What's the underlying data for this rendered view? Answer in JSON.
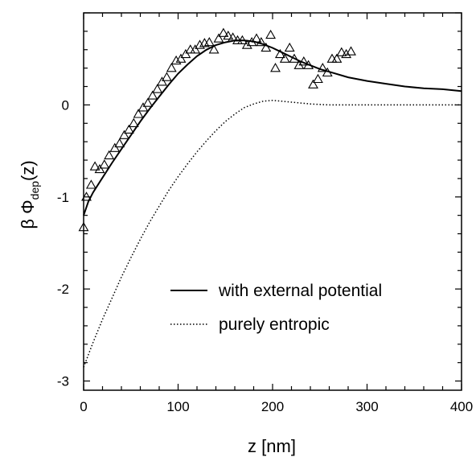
{
  "chart_data": {
    "type": "scatter",
    "xlabel": "z [nm]",
    "ylabel": {
      "prefix": "β Φ",
      "subscript": "dep",
      "suffix": "(z)"
    },
    "xlim": [
      0,
      400
    ],
    "ylim": [
      -3.1,
      1.0
    ],
    "x_ticks": [
      0,
      100,
      200,
      300,
      400
    ],
    "y_ticks": [
      -3,
      -2,
      -1,
      0
    ],
    "x_tick_labels": [
      "0",
      "100",
      "200",
      "300",
      "400"
    ],
    "y_tick_labels": [
      "-3",
      "-2",
      "-1",
      "0"
    ],
    "grid": false,
    "legend_placement": "bottom-right",
    "series": [
      {
        "name": "with external potential",
        "style": "solid",
        "color": "#000000",
        "x": [
          0,
          5,
          10,
          20,
          30,
          40,
          50,
          60,
          70,
          80,
          90,
          100,
          110,
          120,
          130,
          140,
          150,
          160,
          170,
          180,
          190,
          200,
          210,
          220,
          230,
          240,
          250,
          260,
          280,
          300,
          320,
          340,
          360,
          380,
          400
        ],
        "y": [
          -1.2,
          -1.05,
          -0.95,
          -0.79,
          -0.63,
          -0.48,
          -0.33,
          -0.18,
          -0.04,
          0.09,
          0.22,
          0.34,
          0.44,
          0.53,
          0.6,
          0.65,
          0.68,
          0.7,
          0.7,
          0.69,
          0.66,
          0.62,
          0.57,
          0.52,
          0.47,
          0.43,
          0.39,
          0.36,
          0.3,
          0.26,
          0.23,
          0.2,
          0.18,
          0.17,
          0.15
        ]
      },
      {
        "name": "purely entropic",
        "style": "dotted",
        "color": "#000000",
        "x": [
          0,
          10,
          20,
          30,
          40,
          50,
          60,
          70,
          80,
          90,
          100,
          110,
          120,
          130,
          140,
          150,
          160,
          170,
          180,
          190,
          200,
          210,
          220,
          230,
          240,
          260,
          280,
          300,
          320,
          340,
          360,
          380,
          400
        ],
        "y": [
          -2.85,
          -2.58,
          -2.33,
          -2.1,
          -1.87,
          -1.66,
          -1.46,
          -1.27,
          -1.1,
          -0.93,
          -0.78,
          -0.64,
          -0.51,
          -0.39,
          -0.28,
          -0.18,
          -0.1,
          -0.03,
          0.01,
          0.04,
          0.05,
          0.04,
          0.03,
          0.02,
          0.01,
          0.0,
          0.0,
          0.0,
          0.0,
          0.0,
          0.0,
          0.0,
          0.0
        ]
      },
      {
        "name": "",
        "style": "triangles",
        "color": "#000000",
        "x": [
          0,
          3,
          8,
          12,
          17,
          22,
          27,
          33,
          38,
          43,
          48,
          53,
          58,
          63,
          68,
          73,
          78,
          83,
          88,
          93,
          98,
          103,
          108,
          113,
          118,
          123,
          128,
          133,
          138,
          143,
          148,
          153,
          158,
          163,
          168,
          173,
          178,
          183,
          188,
          193,
          198,
          203,
          208,
          213,
          218,
          223,
          228,
          233,
          238,
          243,
          248,
          253,
          258,
          263,
          268,
          273,
          278,
          283
        ],
        "y": [
          -1.33,
          -1.0,
          -0.87,
          -0.67,
          -0.7,
          -0.65,
          -0.55,
          -0.47,
          -0.42,
          -0.33,
          -0.27,
          -0.2,
          -0.1,
          -0.03,
          0.02,
          0.1,
          0.17,
          0.25,
          0.3,
          0.4,
          0.48,
          0.5,
          0.55,
          0.6,
          0.6,
          0.65,
          0.67,
          0.68,
          0.6,
          0.72,
          0.78,
          0.75,
          0.73,
          0.7,
          0.7,
          0.65,
          0.68,
          0.72,
          0.68,
          0.62,
          0.76,
          0.4,
          0.55,
          0.5,
          0.62,
          0.5,
          0.43,
          0.47,
          0.43,
          0.22,
          0.28,
          0.4,
          0.35,
          0.5,
          0.5,
          0.57,
          0.55,
          0.58
        ]
      }
    ]
  }
}
